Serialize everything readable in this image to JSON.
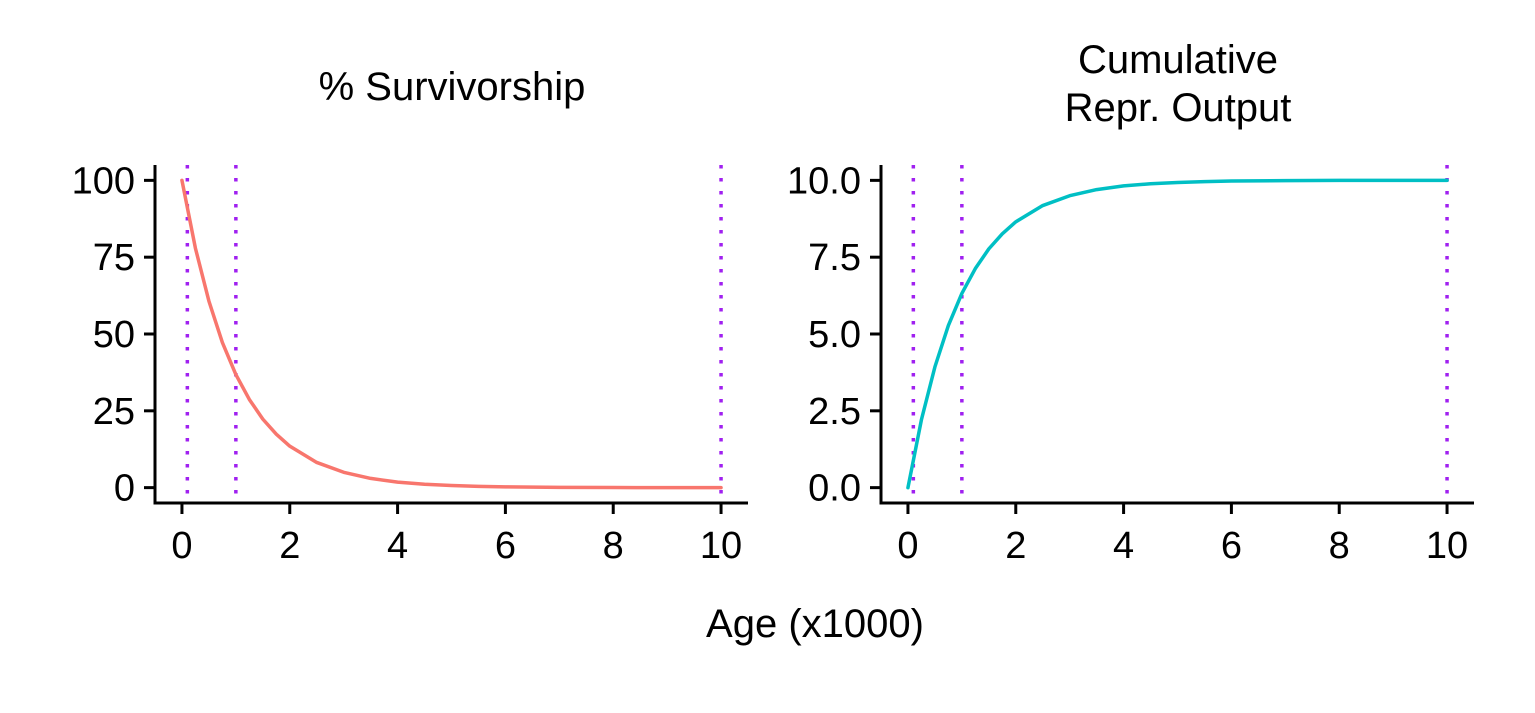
{
  "shared": {
    "xlabel": "Age (x1000)",
    "vline_color": "#a020f0",
    "axis_color": "#000000"
  },
  "chart_data": [
    {
      "type": "line",
      "title": "% Survivorship",
      "title_lines": [
        "% Survivorship"
      ],
      "xlabel": "Age (x1000)",
      "ylabel": "",
      "xlim": [
        -0.5,
        10.5
      ],
      "ylim": [
        -5,
        105
      ],
      "x_ticks": [
        0,
        2,
        4,
        6,
        8,
        10
      ],
      "x_tick_labels": [
        "0",
        "2",
        "4",
        "6",
        "8",
        "10"
      ],
      "y_ticks": [
        0,
        25,
        50,
        75,
        100
      ],
      "y_tick_labels": [
        "0",
        "25",
        "50",
        "75",
        "100"
      ],
      "vlines": [
        0.1,
        1,
        10
      ],
      "vline_style": "dotted",
      "series": [
        {
          "name": "% Survivorship",
          "color": "#f8766d",
          "x": [
            0,
            0.25,
            0.5,
            0.75,
            1,
            1.25,
            1.5,
            1.75,
            2,
            2.5,
            3,
            3.5,
            4,
            4.5,
            5,
            5.5,
            6,
            7,
            8,
            9,
            10
          ],
          "y": [
            100,
            77.9,
            60.7,
            47.2,
            36.8,
            28.7,
            22.3,
            17.4,
            13.5,
            8.2,
            5.0,
            3.0,
            1.8,
            1.1,
            0.7,
            0.4,
            0.25,
            0.09,
            0.03,
            0.01,
            0.0
          ]
        }
      ]
    },
    {
      "type": "line",
      "title": "Cumulative Repr. Output",
      "title_lines": [
        "Cumulative",
        "Repr. Output"
      ],
      "xlabel": "Age (x1000)",
      "ylabel": "",
      "xlim": [
        -0.5,
        10.5
      ],
      "ylim": [
        -0.5,
        10.5
      ],
      "x_ticks": [
        0,
        2,
        4,
        6,
        8,
        10
      ],
      "x_tick_labels": [
        "0",
        "2",
        "4",
        "6",
        "8",
        "10"
      ],
      "y_ticks": [
        0,
        2.5,
        5,
        7.5,
        10
      ],
      "y_tick_labels": [
        "0.0",
        "2.5",
        "5.0",
        "7.5",
        "10.0"
      ],
      "vlines": [
        0.1,
        1,
        10
      ],
      "vline_style": "dotted",
      "series": [
        {
          "name": "Cumulative Repr. Output",
          "color": "#00bfc4",
          "x": [
            0,
            0.25,
            0.5,
            0.75,
            1,
            1.25,
            1.5,
            1.75,
            2,
            2.5,
            3,
            3.5,
            4,
            4.5,
            5,
            5.5,
            6,
            7,
            8,
            9,
            10
          ],
          "y": [
            0,
            2.21,
            3.93,
            5.28,
            6.32,
            7.13,
            7.77,
            8.26,
            8.65,
            9.18,
            9.5,
            9.7,
            9.82,
            9.89,
            9.93,
            9.96,
            9.98,
            9.99,
            10.0,
            10.0,
            10.0
          ]
        }
      ]
    }
  ]
}
